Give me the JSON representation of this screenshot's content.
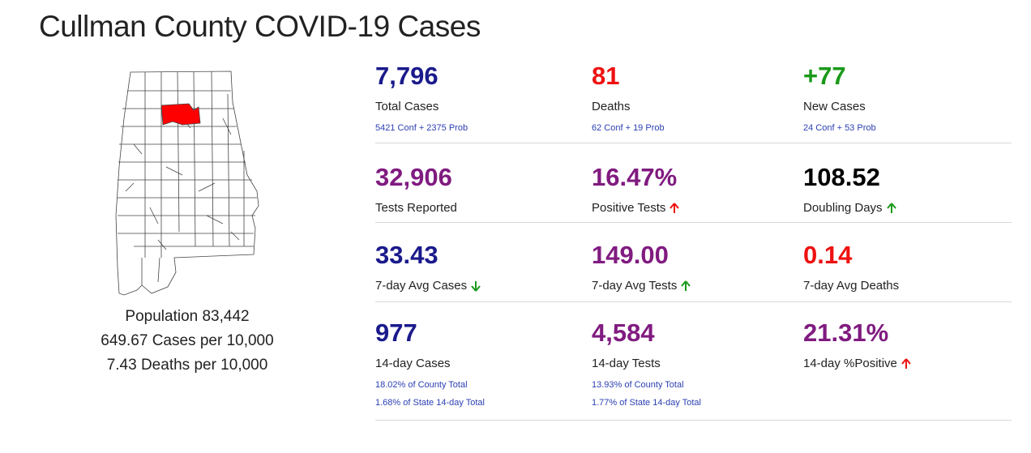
{
  "title": "Cullman County COVID-19 Cases",
  "county_info": {
    "population": "Population 83,442",
    "cases_per_10k": "649.67 Cases per 10,000",
    "deaths_per_10k": "7.43 Deaths per 10,000"
  },
  "colors": {
    "navy": "#1a1a8c",
    "red": "#ee1111",
    "green": "#1a9a1a",
    "purple": "#801b80",
    "black": "#000000",
    "link_blue": "#2b3fb3",
    "highlight_county": "#ff0000"
  },
  "stats": {
    "total_cases": {
      "value": "7,796",
      "label": "Total Cases",
      "sub": "5421 Conf + 2375 Prob"
    },
    "deaths": {
      "value": "81",
      "label": "Deaths",
      "sub": "62 Conf + 19 Prob"
    },
    "new_cases": {
      "value": "+77",
      "label": "New Cases",
      "sub": "24 Conf + 53 Prob"
    },
    "tests_reported": {
      "value": "32,906",
      "label": "Tests Reported"
    },
    "positive_tests": {
      "value": "16.47%",
      "label": "Positive Tests",
      "trend": "up",
      "trend_icon": "arrow-up-icon"
    },
    "doubling_days": {
      "value": "108.52",
      "label": "Doubling Days",
      "trend": "up",
      "trend_icon": "arrow-up-icon"
    },
    "avg7_cases": {
      "value": "33.43",
      "label": "7-day Avg Cases",
      "trend": "down",
      "trend_icon": "arrow-down-icon"
    },
    "avg7_tests": {
      "value": "149.00",
      "label": "7-day Avg Tests",
      "trend": "up",
      "trend_icon": "arrow-up-icon"
    },
    "avg7_deaths": {
      "value": "0.14",
      "label": "7-day Avg Deaths"
    },
    "cases_14day": {
      "value": "977",
      "label": "14-day Cases",
      "sub1": "18.02% of County Total",
      "sub2": "1.68% of State 14-day Total"
    },
    "tests_14day": {
      "value": "4,584",
      "label": "14-day Tests",
      "sub1": "13.93% of County Total",
      "sub2": "1.77% of State 14-day Total"
    },
    "positive_14day": {
      "value": "21.31%",
      "label": "14-day %Positive",
      "trend": "up",
      "trend_icon": "arrow-up-icon"
    }
  }
}
